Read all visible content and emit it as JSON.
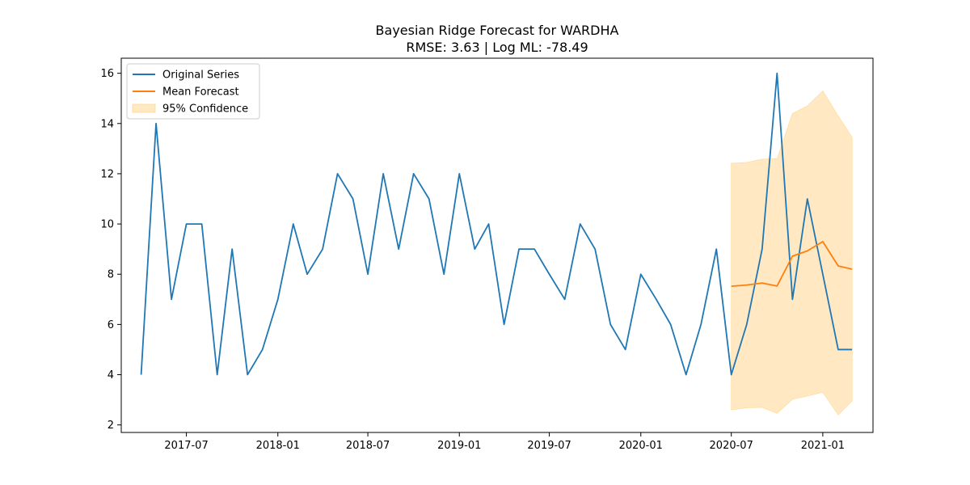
{
  "chart_data": {
    "type": "line",
    "title": "Bayesian Ridge Forecast for WARDHA",
    "subtitle": "RMSE: 3.63 | Log ML: -78.49",
    "xlabel": "",
    "ylabel": "",
    "ylim": [
      1.7,
      16.6
    ],
    "xlim": [
      "2017-02-20",
      "2021-04-12"
    ],
    "grid": false,
    "legend_position": "top-left",
    "x_ticks": [
      "2017-07",
      "2018-01",
      "2018-07",
      "2019-01",
      "2019-07",
      "2020-01",
      "2020-07",
      "2021-01"
    ],
    "y_ticks": [
      2,
      4,
      6,
      8,
      10,
      12,
      14,
      16
    ],
    "colors": {
      "original": "#1f77b4",
      "forecast": "#ff7f0e",
      "confidence": "#ffe8c2"
    },
    "series": [
      {
        "name": "Original Series",
        "kind": "line",
        "x": [
          "2017-04",
          "2017-05",
          "2017-06",
          "2017-07",
          "2017-08",
          "2017-09",
          "2017-10",
          "2017-11",
          "2017-12",
          "2018-01",
          "2018-02",
          "2018-03",
          "2018-04",
          "2018-05",
          "2018-06",
          "2018-07",
          "2018-08",
          "2018-09",
          "2018-10",
          "2018-11",
          "2018-12",
          "2019-01",
          "2019-02",
          "2019-03",
          "2019-04",
          "2019-05",
          "2019-06",
          "2019-07",
          "2019-08",
          "2019-09",
          "2019-10",
          "2019-11",
          "2019-12",
          "2020-01",
          "2020-02",
          "2020-03",
          "2020-04",
          "2020-05",
          "2020-06",
          "2020-07",
          "2020-08",
          "2020-09",
          "2020-10",
          "2020-11",
          "2020-12",
          "2021-01",
          "2021-02",
          "2021-03"
        ],
        "values": [
          4,
          14,
          7,
          10,
          10,
          4,
          9,
          4,
          5,
          7,
          10,
          8,
          9,
          12,
          11,
          8,
          12,
          9,
          12,
          11,
          8,
          12,
          9,
          10,
          6,
          9,
          9,
          8,
          7,
          10,
          9,
          6,
          5,
          8,
          7,
          6,
          4,
          6,
          9,
          4,
          6,
          9,
          16,
          7,
          11,
          8,
          5,
          5
        ]
      },
      {
        "name": "Mean Forecast",
        "kind": "line",
        "x": [
          "2020-07",
          "2020-08",
          "2020-09",
          "2020-10",
          "2020-11",
          "2020-12",
          "2021-01",
          "2021-02",
          "2021-03"
        ],
        "values": [
          7.52,
          7.57,
          7.65,
          7.53,
          8.72,
          8.93,
          9.3,
          8.33,
          8.2
        ]
      },
      {
        "name": "95% Confidence",
        "kind": "band",
        "x": [
          "2020-07",
          "2020-08",
          "2020-09",
          "2020-10",
          "2020-11",
          "2020-12",
          "2021-01",
          "2021-02",
          "2021-03"
        ],
        "upper": [
          12.42,
          12.45,
          12.58,
          12.6,
          14.4,
          14.7,
          15.3,
          14.3,
          13.45
        ],
        "lower": [
          2.6,
          2.68,
          2.7,
          2.46,
          3.02,
          3.15,
          3.3,
          2.4,
          2.95
        ]
      }
    ]
  }
}
